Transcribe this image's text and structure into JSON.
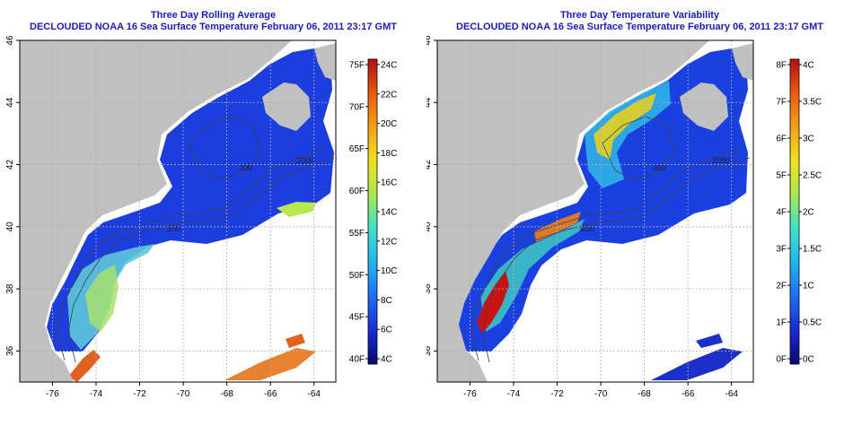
{
  "colors": {
    "title": "#1c1cb4",
    "land": "#c0c0c0",
    "no_data": "#ffffff",
    "contour": "#404040",
    "grid": "#b0b0b0"
  },
  "map": {
    "lon_ticks": [
      "-76",
      "-74",
      "-72",
      "-70",
      "-68",
      "-66",
      "-64"
    ],
    "lat_ticks": [
      "36",
      "38",
      "40",
      "42",
      "44",
      "46"
    ],
    "lon_range": [
      -77.5,
      -63
    ],
    "lat_range": [
      35,
      46
    ],
    "contour_labels": [
      "200",
      "2000",
      "200"
    ]
  },
  "panels": [
    {
      "id": "rolling-average",
      "title": "Three Day Rolling Average",
      "subtitle": "DECLOUDED NOAA 16 Sea Surface Temperature February 06, 2011 23:17 GMT",
      "colorbar": {
        "left_labels": [
          "75F",
          "70F",
          "65F",
          "60F",
          "55F",
          "50F",
          "45F",
          "40F"
        ],
        "right_labels": [
          "24C",
          "22C",
          "20C",
          "18C",
          "16C",
          "14C",
          "12C",
          "10C",
          "8C",
          "6C",
          "4C"
        ],
        "gradient": [
          "#0a0a6e",
          "#1a2ad8",
          "#1e6ef0",
          "#20b4f0",
          "#40e0c8",
          "#a8e850",
          "#f0e020",
          "#f4a018",
          "#e85a10",
          "#b41010"
        ]
      }
    },
    {
      "id": "variability",
      "title": "Three Day Temperature Variability",
      "subtitle": "DECLOUDED NOAA 16 Sea Surface Temperature February 06, 2011 23:17 GMT",
      "colorbar": {
        "left_labels": [
          "8F",
          "7F",
          "6F",
          "5F",
          "4F",
          "3F",
          "2F",
          "1F",
          "0F"
        ],
        "right_labels": [
          "4C",
          "3.5C",
          "3C",
          "2.5C",
          "2C",
          "1.5C",
          "1C",
          "0.5C",
          "0C"
        ],
        "gradient": [
          "#0a0a6e",
          "#1a2ad8",
          "#1e6ef0",
          "#20b4f0",
          "#40e0c8",
          "#a8e850",
          "#f0e020",
          "#f4a018",
          "#e85a10",
          "#b41010"
        ]
      }
    }
  ]
}
